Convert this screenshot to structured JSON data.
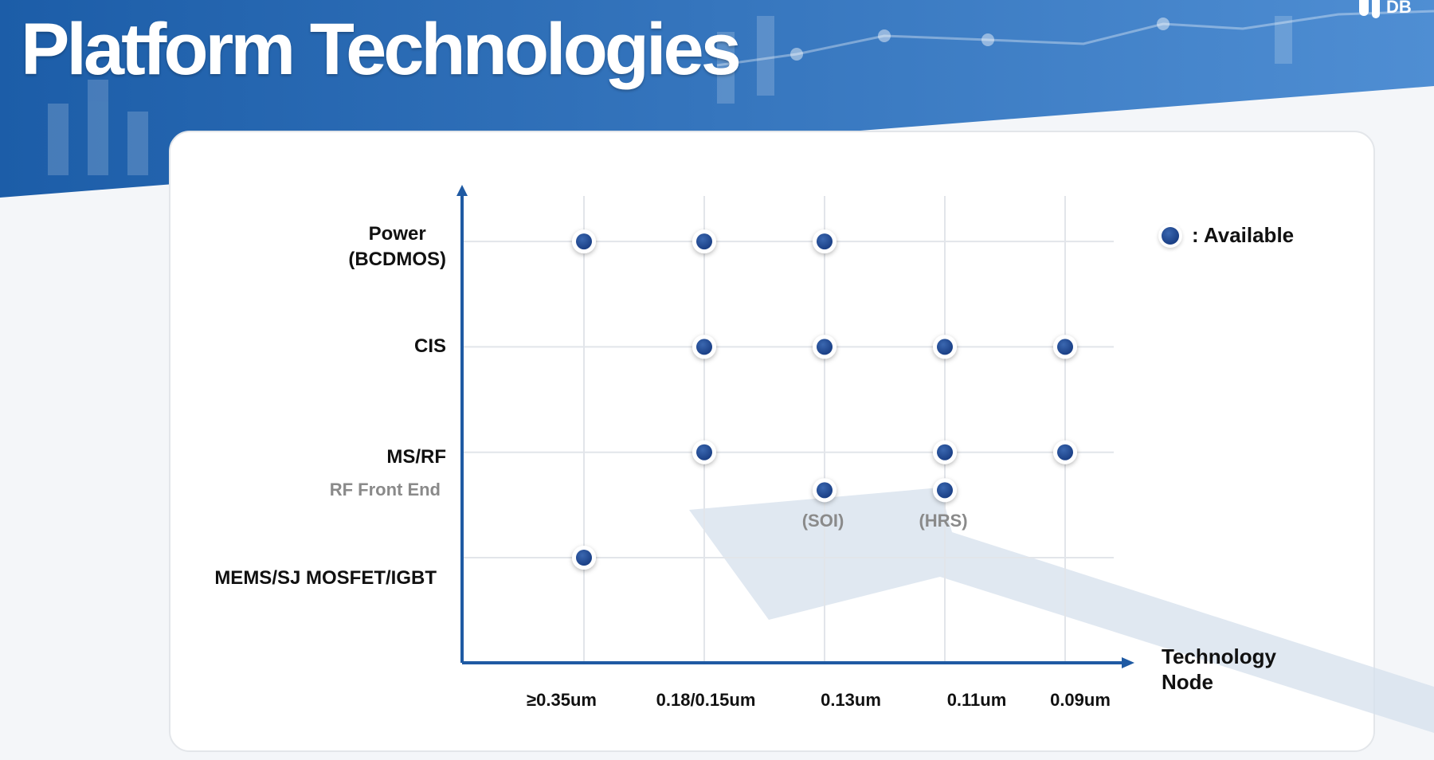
{
  "page": {
    "title": "Platform Technologies",
    "logo_text": "DB"
  },
  "legend": {
    "label": ": Available"
  },
  "colors": {
    "header_dark": "#1c5da8",
    "header_light": "#4f8ed3",
    "axis": "#1f5aa3",
    "dot": "#1a3f85",
    "grid": "#e2e5ea",
    "arrow_watermark": "#d6e0ec"
  },
  "chart_data": {
    "type": "scatter",
    "title": "Platform Technologies",
    "xlabel": "Technology Node",
    "ylabel": "",
    "x_categories": [
      "≥0.35um",
      "0.18/0.15um",
      "0.13um",
      "0.11um",
      "0.09um"
    ],
    "y_categories": [
      {
        "label": "Power\n(BCDMOS)",
        "level": 3,
        "style": "main"
      },
      {
        "label": "CIS",
        "level": 2,
        "style": "main"
      },
      {
        "label": "MS/RF",
        "level": 1,
        "style": "main"
      },
      {
        "label": "RF Front End",
        "level": 0.64,
        "style": "sub"
      },
      {
        "label": "MEMS/SJ MOSFET/IGBT",
        "level": 0,
        "style": "main"
      }
    ],
    "points": [
      {
        "x": "≥0.35um",
        "y": "Power\n(BCDMOS)"
      },
      {
        "x": "0.18/0.15um",
        "y": "Power\n(BCDMOS)"
      },
      {
        "x": "0.13um",
        "y": "Power\n(BCDMOS)"
      },
      {
        "x": "0.18/0.15um",
        "y": "CIS"
      },
      {
        "x": "0.13um",
        "y": "CIS"
      },
      {
        "x": "0.11um",
        "y": "CIS"
      },
      {
        "x": "0.09um",
        "y": "CIS"
      },
      {
        "x": "0.18/0.15um",
        "y": "MS/RF"
      },
      {
        "x": "0.11um",
        "y": "MS/RF"
      },
      {
        "x": "0.09um",
        "y": "MS/RF"
      },
      {
        "x": "0.13um",
        "y": "RF Front End",
        "annotation": "(SOI)"
      },
      {
        "x": "0.11um",
        "y": "RF Front End",
        "annotation": "(HRS)"
      },
      {
        "x": "≥0.35um",
        "y": "MEMS/SJ MOSFET/IGBT"
      }
    ],
    "legend": {
      "label": ": Available",
      "position": "top-right"
    },
    "grid": true
  }
}
